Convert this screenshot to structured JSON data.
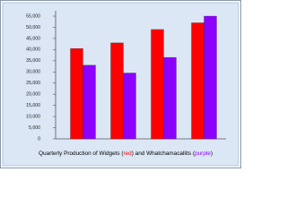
{
  "chart_data": {
    "type": "bar",
    "title": [
      "Quarterly Production of Widgets (",
      "red",
      ") and Whatchamacallits (",
      "purple",
      ")"
    ],
    "categories": [
      null,
      null,
      null,
      null
    ],
    "series": [
      {
        "color": "#ff0000",
        "values": [
          40500,
          43000,
          49000,
          52000
        ]
      },
      {
        "color": "#8b00ff",
        "values": [
          33000,
          29500,
          36500,
          55000
        ]
      }
    ],
    "ylim": [
      0,
      55000
    ],
    "yticks": [
      0,
      {
        "value": 5000,
        "label": "5,000"
      },
      {
        "value": 10000,
        "label": "10,000"
      },
      {
        "value": 15000,
        "label": "15,000"
      },
      {
        "value": 20000,
        "label": "20,000"
      },
      {
        "value": 25000,
        "label": "25,000"
      },
      {
        "value": 30000,
        "label": "30,000"
      },
      {
        "value": 35000,
        "label": "35,000"
      },
      {
        "value": 40000,
        "label": "40,000"
      },
      {
        "value": 45000,
        "label": "45,000"
      },
      {
        "value": 50000,
        "label": "50,000"
      },
      {
        "value": 55000,
        "label": "55,000"
      }
    ],
    "grid": false
  }
}
